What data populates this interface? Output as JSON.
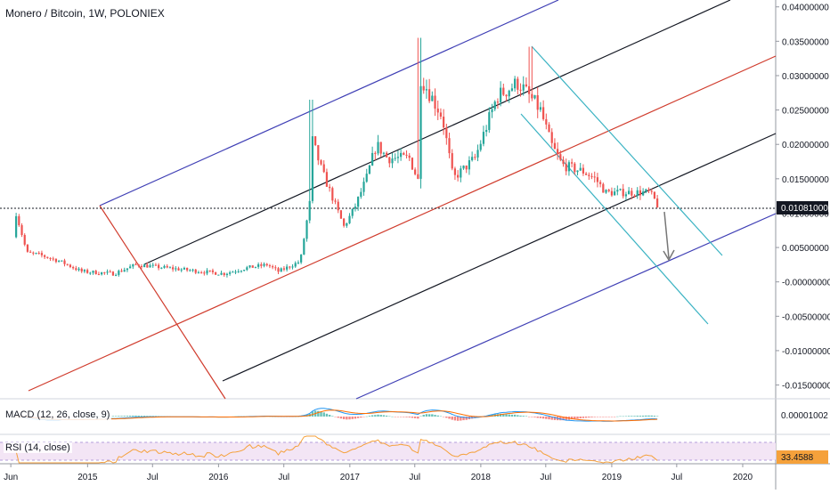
{
  "header": {
    "title": "Monero / Bitcoin, 1W, POLONIEX"
  },
  "price_axis": {
    "labels": [
      "0.04000000",
      "0.03500000",
      "0.03000000",
      "0.02500000",
      "0.02000000",
      "0.01500000",
      "0.01000000",
      "0.00500000",
      "-0.00000000",
      "-0.00500000",
      "-0.01000000",
      "-0.01500000"
    ],
    "current_price": "0.01081000"
  },
  "time_axis": {
    "labels": [
      "Jun",
      "2015",
      "Jul",
      "2016",
      "Jul",
      "2017",
      "Jul",
      "2018",
      "Jul",
      "2019",
      "Jul",
      "2020"
    ]
  },
  "macd": {
    "label": "MACD (12, 26, close, 9)",
    "value": "0.00001002"
  },
  "rsi": {
    "label": "RSI (14, close)",
    "value": "33.4588"
  },
  "colors": {
    "up": "#26a69a",
    "down": "#ef5350",
    "outer_channel": "#3f3fb5",
    "mid_channel": "#131722",
    "median": "#d03b2c",
    "descend_channel": "#3bb3c3",
    "macd_line": "#2196f3",
    "signal_line": "#ff6d00",
    "rsi_line": "#f5a13b",
    "rsi_bg": "#f3e5f5"
  },
  "chart_data": {
    "type": "candlestick",
    "title": "Monero / Bitcoin, 1W, POLONIEX",
    "ylim": [
      -0.017,
      0.041
    ],
    "x_range": [
      "2014-05",
      "2020-04"
    ],
    "price_path": [
      [
        "2014-06",
        0.0065
      ],
      [
        "2014-06",
        0.01
      ],
      [
        "2014-07",
        0.0042
      ],
      [
        "2014-08",
        0.004
      ],
      [
        "2014-10",
        0.003
      ],
      [
        "2014-12",
        0.0015
      ],
      [
        "2015-03",
        0.0012
      ],
      [
        "2015-05",
        0.0025
      ],
      [
        "2015-08",
        0.002
      ],
      [
        "2015-11",
        0.0015
      ],
      [
        "2016-01",
        0.0012
      ],
      [
        "2016-03",
        0.002
      ],
      [
        "2016-05",
        0.0025
      ],
      [
        "2016-06",
        0.0015
      ],
      [
        "2016-08",
        0.003
      ],
      [
        "2016-09",
        0.013
      ],
      [
        "2016-09",
        0.021
      ],
      [
        "2016-10",
        0.016
      ],
      [
        "2016-12",
        0.008
      ],
      [
        "2017-01",
        0.011
      ],
      [
        "2017-02",
        0.015
      ],
      [
        "2017-03",
        0.02
      ],
      [
        "2017-04",
        0.018
      ],
      [
        "2017-05",
        0.018
      ],
      [
        "2017-06",
        0.018
      ],
      [
        "2017-07",
        0.014
      ],
      [
        "2017-07",
        0.03
      ],
      [
        "2017-09",
        0.024
      ],
      [
        "2017-10",
        0.015
      ],
      [
        "2017-12",
        0.018
      ],
      [
        "2018-02",
        0.027
      ],
      [
        "2018-04",
        0.029
      ],
      [
        "2018-05",
        0.027
      ],
      [
        "2018-06",
        0.025
      ],
      [
        "2018-07",
        0.02
      ],
      [
        "2018-08",
        0.017
      ],
      [
        "2018-10",
        0.016
      ],
      [
        "2018-11",
        0.015
      ],
      [
        "2018-12",
        0.013
      ],
      [
        "2019-02",
        0.013
      ],
      [
        "2019-04",
        0.013
      ],
      [
        "2019-05",
        0.0108
      ]
    ],
    "spike_highs": [
      [
        "2016-09",
        0.0265
      ],
      [
        "2017-07",
        0.0355
      ],
      [
        "2018-05",
        0.0342
      ]
    ],
    "current_price": 0.01081
  }
}
